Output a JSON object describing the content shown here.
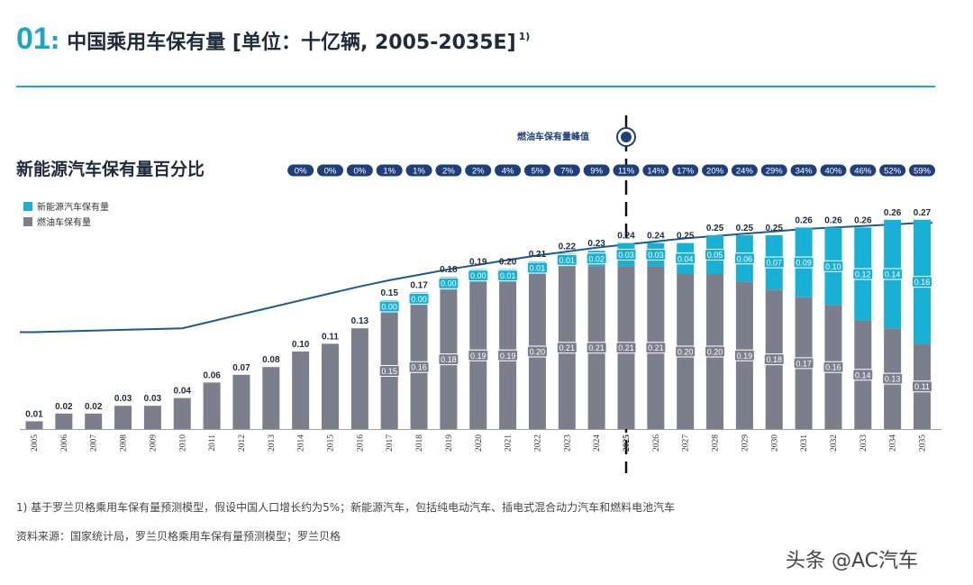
{
  "header": {
    "number": "01",
    "colon": ":",
    "title": "中国乘用车保有量 [单位：十亿辆, 2005-2035E]",
    "superscript": "1)"
  },
  "subtitle": "新能源汽车保有量百分比",
  "legend": {
    "nev": "新能源汽车保有量",
    "ice": "燃油车保有量"
  },
  "peak_label": "燃油车保有量峰值",
  "footnotes": {
    "note1": "1) 基于罗兰贝格乘用车保有量预测模型，假设中国人口增长约为5%；新能源汽车，包括纯电动汽车、插电式混合动力汽车和燃料电池汽车",
    "source": "资料来源：国家统计局，罗兰贝格乘用车保有量预测模型；罗兰贝格"
  },
  "watermark": "头条 @AC汽车",
  "colors": {
    "nev": "#19b0d6",
    "ice": "#7b7f8c",
    "line": "#1e5a8a",
    "pill": "#1e3f7a",
    "accent": "#1aa6c8"
  },
  "chart_data": {
    "type": "bar",
    "stacked": true,
    "title": "中国乘用车保有量 [单位：十亿辆, 2005-2035E]",
    "unit": "十亿辆",
    "categories": [
      "2005",
      "2006",
      "2007",
      "2008",
      "2009",
      "2010",
      "2011",
      "2012",
      "2013",
      "2014",
      "2015",
      "2016",
      "2017",
      "2018",
      "2019",
      "2020",
      "2021",
      "2022",
      "2023",
      "2024",
      "2025",
      "2026",
      "2027",
      "2028",
      "2029",
      "2030",
      "2031",
      "2032",
      "2033",
      "2034",
      "2035"
    ],
    "totals": [
      0.01,
      0.02,
      0.02,
      0.03,
      0.03,
      0.04,
      0.06,
      0.07,
      0.08,
      0.1,
      0.11,
      0.13,
      0.15,
      0.17,
      0.18,
      0.19,
      0.2,
      0.21,
      0.22,
      0.23,
      0.24,
      0.24,
      0.25,
      0.25,
      0.25,
      0.25,
      0.26,
      0.26,
      0.26,
      0.26,
      0.27
    ],
    "series": [
      {
        "name": "燃油车保有量",
        "values": [
          0.01,
          0.02,
          0.02,
          0.03,
          0.03,
          0.04,
          0.06,
          0.07,
          0.08,
          0.1,
          0.11,
          0.13,
          0.15,
          0.16,
          0.18,
          0.19,
          0.19,
          0.2,
          0.21,
          0.21,
          0.21,
          0.21,
          0.2,
          0.2,
          0.19,
          0.18,
          0.17,
          0.16,
          0.14,
          0.13,
          0.11
        ]
      },
      {
        "name": "新能源汽车保有量",
        "values": [
          0,
          0,
          0,
          0,
          0,
          0,
          0,
          0,
          0,
          0,
          0,
          0,
          0.0,
          0.0,
          0.0,
          0.0,
          0.01,
          0.01,
          0.01,
          0.02,
          0.03,
          0.03,
          0.04,
          0.05,
          0.06,
          0.07,
          0.09,
          0.1,
          0.12,
          0.14,
          0.16
        ]
      }
    ],
    "segment_labels_ice": [
      "",
      "",
      "",
      "",
      "",
      "",
      "",
      "",
      "",
      "",
      "",
      "",
      "0.15",
      "0.16",
      "0.18",
      "0.19",
      "0.19",
      "0.20",
      "0.21",
      "0.21",
      "0.21",
      "0.21",
      "0.20",
      "0.20",
      "0.19",
      "0.18",
      "0.17",
      "0.16",
      "0.14",
      "0.13",
      "0.11"
    ],
    "segment_labels_nev": [
      "",
      "",
      "",
      "",
      "",
      "",
      "",
      "",
      "",
      "",
      "",
      "",
      "0.00",
      "0.00",
      "0.00",
      "0.00",
      "0.01",
      "0.01",
      "0.01",
      "0.02",
      "0.03",
      "0.03",
      "0.04",
      "0.05",
      "0.06",
      "0.07",
      "0.09",
      "0.10",
      "0.12",
      "0.14",
      "0.16"
    ],
    "total_labels": [
      "0.01",
      "0.02",
      "0.02",
      "0.03",
      "0.03",
      "0.04",
      "0.06",
      "0.07",
      "0.08",
      "0.10",
      "0.11",
      "0.13",
      "0.15",
      "0.17",
      "0.18",
      "0.19",
      "0.20",
      "0.21",
      "0.22",
      "0.23",
      "0.24",
      "0.24",
      "0.25",
      "0.25",
      "0.25",
      "0.25",
      "0.26",
      "0.26",
      "0.26",
      "0.26",
      "0.27"
    ],
    "nev_share_labels": [
      "0%",
      "0%",
      "0%",
      "1%",
      "1%",
      "2%",
      "2%",
      "4%",
      "5%",
      "7%",
      "9%",
      "11%",
      "14%",
      "17%",
      "20%",
      "24%",
      "29%",
      "34%",
      "40%",
      "46%",
      "52%",
      "59%"
    ],
    "nev_share_start_year": "2014",
    "peak_year": "2025",
    "trend_line_values": [
      0.125,
      0.126,
      0.127,
      0.128,
      0.129,
      0.13,
      0.139,
      0.148,
      0.157,
      0.166,
      0.175,
      0.184,
      0.192,
      0.199,
      0.206,
      0.212,
      0.218,
      0.224,
      0.229,
      0.234,
      0.238,
      0.242,
      0.246,
      0.249,
      0.252,
      0.255,
      0.258,
      0.26,
      0.262,
      0.264,
      0.266
    ],
    "ylim": [
      0,
      0.27
    ],
    "legend": [
      "新能源汽车保有量",
      "燃油车保有量"
    ]
  }
}
